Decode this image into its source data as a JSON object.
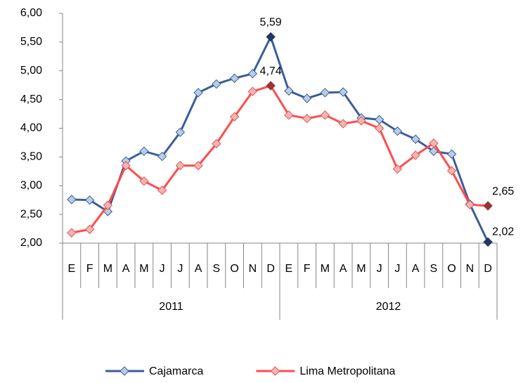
{
  "chart_data": {
    "type": "line",
    "categories": [
      "E",
      "F",
      "M",
      "A",
      "M",
      "J",
      "J",
      "A",
      "S",
      "O",
      "N",
      "D",
      "E",
      "F",
      "M",
      "A",
      "M",
      "J",
      "J",
      "A",
      "S",
      "O",
      "N",
      "D"
    ],
    "category_groups": [
      "2011",
      "2012"
    ],
    "series": [
      {
        "name": "Cajamarca",
        "color": "#3a5e99",
        "marker_color": "#b9cde5",
        "highlight_color": "#1f3864",
        "values": [
          2.76,
          2.75,
          2.55,
          3.43,
          3.6,
          3.51,
          3.93,
          4.62,
          4.77,
          4.87,
          4.95,
          5.59,
          4.65,
          4.52,
          4.62,
          4.63,
          4.18,
          4.15,
          3.95,
          3.81,
          3.6,
          3.55,
          2.68,
          2.02
        ],
        "value_labels": [
          null,
          null,
          null,
          null,
          null,
          null,
          null,
          null,
          null,
          null,
          null,
          "5,59",
          null,
          null,
          null,
          null,
          null,
          null,
          null,
          null,
          null,
          null,
          null,
          "2,02"
        ]
      },
      {
        "name": "Lima Metropolitana",
        "color": "#ff4c4c",
        "marker_color": "#e6b9b8",
        "highlight_color": "#953735",
        "values": [
          2.18,
          2.24,
          2.66,
          3.35,
          3.08,
          2.92,
          3.35,
          3.35,
          3.73,
          4.2,
          4.64,
          4.74,
          4.23,
          4.17,
          4.23,
          4.08,
          4.13,
          4.0,
          3.29,
          3.53,
          3.74,
          3.26,
          2.67,
          2.65
        ],
        "value_labels": [
          null,
          null,
          null,
          null,
          null,
          null,
          null,
          null,
          null,
          null,
          null,
          "4,74",
          null,
          null,
          null,
          null,
          null,
          null,
          null,
          null,
          null,
          null,
          null,
          "2,65"
        ]
      }
    ],
    "ylim": [
      2,
      6
    ],
    "yticks": [
      {
        "value": 2,
        "label": "2,00"
      },
      {
        "value": 2.5,
        "label": "2,50"
      },
      {
        "value": 3,
        "label": "3,00"
      },
      {
        "value": 3.5,
        "label": "3,50"
      },
      {
        "value": 4,
        "label": "4,00"
      },
      {
        "value": 4.5,
        "label": "4,50"
      },
      {
        "value": 5,
        "label": "5,00"
      },
      {
        "value": 5.5,
        "label": "5,50"
      },
      {
        "value": 6,
        "label": "6,00"
      }
    ],
    "grid": false,
    "legend": "bottom"
  }
}
